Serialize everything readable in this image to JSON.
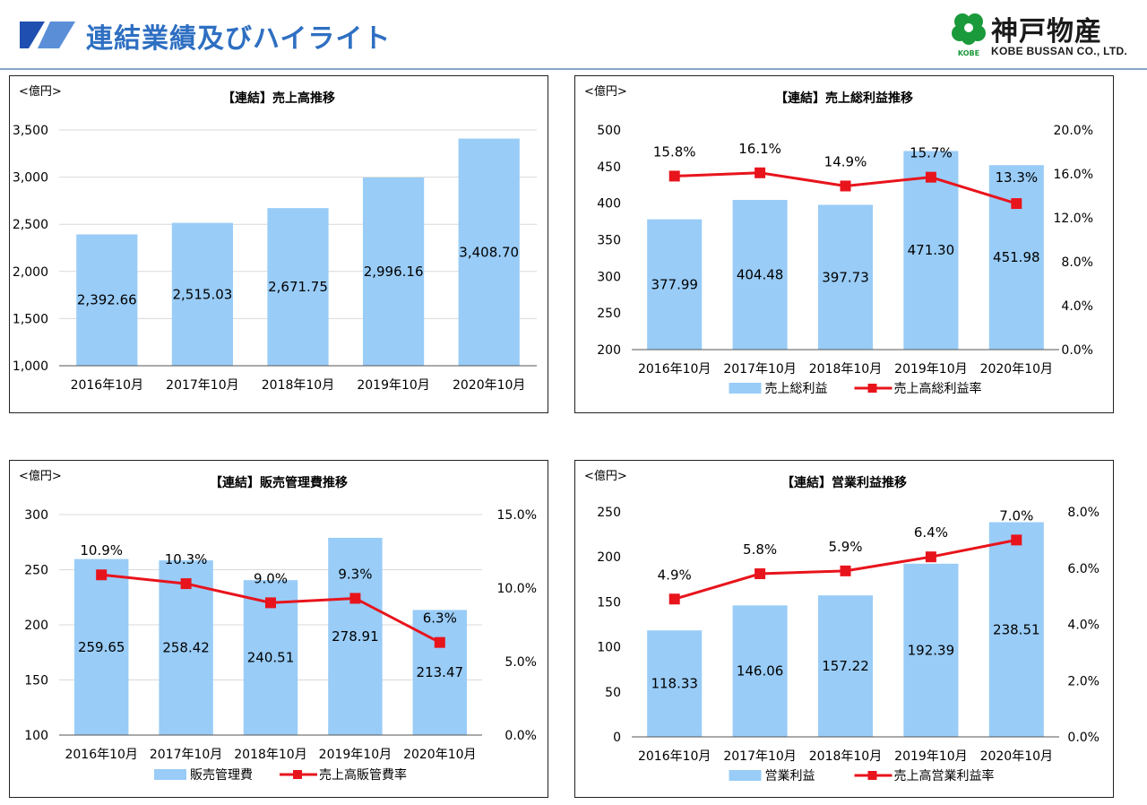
{
  "header": {
    "title": "連結業績及びハイライト",
    "logo_name": "神戸物産",
    "logo_sub": "KOBE BUSSAN CO., LTD.",
    "logo_badge": "KOBE"
  },
  "colors": {
    "bar": "#99ccf7",
    "line": "#e8141c",
    "title": "#2e6fc2",
    "grid": "#d9d9d9"
  },
  "chart_data": [
    {
      "id": "sales",
      "type": "bar",
      "title": "【連結】売上高推移",
      "unit": "<億円>",
      "categories": [
        "2016年10月",
        "2017年10月",
        "2018年10月",
        "2019年10月",
        "2020年10月"
      ],
      "series": [
        {
          "values": [
            2392.66,
            2515.03,
            2671.75,
            2996.16,
            3408.7
          ]
        }
      ],
      "value_labels": [
        "2,392.66",
        "2,515.03",
        "2,671.75",
        "2,996.16",
        "3,408.70"
      ],
      "ylim": [
        1000,
        3500
      ],
      "yticks": [
        "1,000",
        "1,500",
        "2,000",
        "2,500",
        "3,000",
        "3,500"
      ],
      "grid": true
    },
    {
      "id": "gross_profit",
      "type": "bar",
      "title": "【連結】売上総利益推移",
      "unit": "<億円>",
      "categories": [
        "2016年10月",
        "2017年10月",
        "2018年10月",
        "2019年10月",
        "2020年10月"
      ],
      "series": [
        {
          "name": "売上総利益",
          "values": [
            377.99,
            404.48,
            397.73,
            471.3,
            451.98
          ]
        },
        {
          "name": "売上高総利益率",
          "type": "line",
          "axis": "right",
          "values": [
            15.8,
            16.1,
            14.9,
            15.7,
            13.3
          ]
        }
      ],
      "value_labels": [
        "377.99",
        "404.48",
        "397.73",
        "471.30",
        "451.98"
      ],
      "line_labels": [
        "15.8%",
        "16.1%",
        "14.9%",
        "15.7%",
        "13.3%"
      ],
      "ylim": [
        200,
        500
      ],
      "yticks": [
        "200",
        "250",
        "300",
        "350",
        "400",
        "450",
        "500"
      ],
      "y2lim": [
        0,
        20
      ],
      "y2ticks": [
        "0.0%",
        "4.0%",
        "8.0%",
        "12.0%",
        "16.0%",
        "20.0%"
      ],
      "grid": false,
      "legend": "bottom"
    },
    {
      "id": "sga",
      "type": "bar",
      "title": "【連結】販売管理費推移",
      "unit": "<億円>",
      "categories": [
        "2016年10月",
        "2017年10月",
        "2018年10月",
        "2019年10月",
        "2020年10月"
      ],
      "series": [
        {
          "name": "販売管理費",
          "values": [
            259.65,
            258.42,
            240.51,
            278.91,
            213.47
          ]
        },
        {
          "name": "売上高販管費率",
          "type": "line",
          "axis": "right",
          "values": [
            10.9,
            10.3,
            9.0,
            9.3,
            6.3
          ]
        }
      ],
      "value_labels": [
        "259.65",
        "258.42",
        "240.51",
        "278.91",
        "213.47"
      ],
      "line_labels": [
        "10.9%",
        "10.3%",
        "9.0%",
        "9.3%",
        "6.3%"
      ],
      "ylim": [
        100,
        300
      ],
      "yticks": [
        "100",
        "150",
        "200",
        "250",
        "300"
      ],
      "y2lim": [
        0,
        15
      ],
      "y2ticks": [
        "0.0%",
        "5.0%",
        "10.0%",
        "15.0%"
      ],
      "grid": true,
      "legend": "bottom"
    },
    {
      "id": "operating_profit",
      "type": "bar",
      "title": "【連結】営業利益推移",
      "unit": "<億円>",
      "categories": [
        "2016年10月",
        "2017年10月",
        "2018年10月",
        "2019年10月",
        "2020年10月"
      ],
      "series": [
        {
          "name": "営業利益",
          "values": [
            118.33,
            146.06,
            157.22,
            192.39,
            238.51
          ]
        },
        {
          "name": "売上高営業利益率",
          "type": "line",
          "axis": "right",
          "values": [
            4.9,
            5.8,
            5.9,
            6.4,
            7.0
          ]
        }
      ],
      "value_labels": [
        "118.33",
        "146.06",
        "157.22",
        "192.39",
        "238.51"
      ],
      "line_labels": [
        "4.9%",
        "5.8%",
        "5.9%",
        "6.4%",
        "7.0%"
      ],
      "ylim": [
        0,
        250
      ],
      "yticks": [
        "0",
        "50",
        "100",
        "150",
        "200",
        "250"
      ],
      "y2lim": [
        0,
        8
      ],
      "y2ticks": [
        "0.0%",
        "2.0%",
        "4.0%",
        "6.0%",
        "8.0%"
      ],
      "grid": false,
      "legend": "bottom"
    }
  ]
}
